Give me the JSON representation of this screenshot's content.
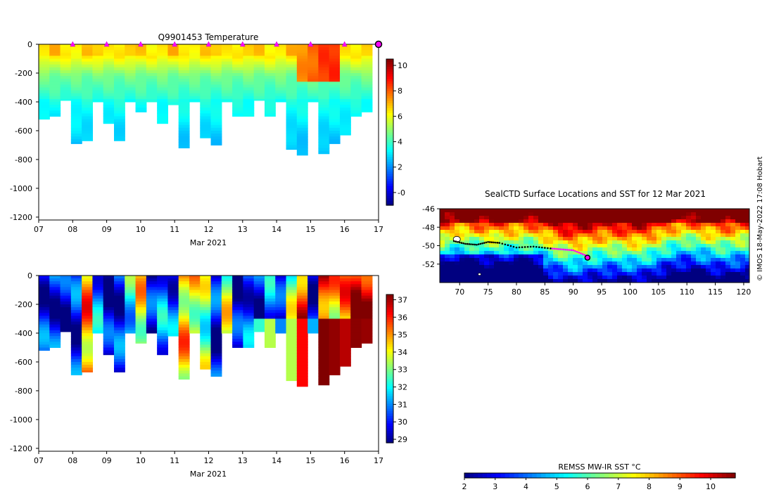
{
  "chart_data": [
    {
      "type": "heatmap",
      "title": "Q9901453  Temperature",
      "xlabel": "Mar 2021",
      "x_ticks": [
        "07",
        "08",
        "09",
        "10",
        "11",
        "12",
        "13",
        "14",
        "15",
        "16",
        "17"
      ],
      "y_ticks": [
        "0",
        "-200",
        "-400",
        "-600",
        "-800",
        "-1000",
        "-1200"
      ],
      "ylim": [
        -1220,
        0
      ],
      "colorbar": {
        "range": [
          -1,
          10.5
        ],
        "ticks": [
          "-0",
          "2",
          "4",
          "6",
          "8",
          "10"
        ]
      },
      "profile_markers_day": [
        8,
        9,
        10,
        11,
        12,
        13,
        14,
        15,
        16
      ],
      "last_profile_day": 17,
      "profile_max_depths_m": [
        -520,
        -500,
        -390,
        -690,
        -670,
        -400,
        -550,
        -670,
        -400,
        -470,
        -400,
        -550,
        -420,
        -720,
        -400,
        -650,
        -700,
        -400,
        -500,
        -500,
        -390,
        -500,
        -400,
        -730,
        -770,
        -400,
        -760,
        -690,
        -630,
        -500,
        -470
      ]
    },
    {
      "type": "heatmap",
      "title": "",
      "xlabel": "Mar 2021",
      "x_ticks": [
        "07",
        "08",
        "09",
        "10",
        "11",
        "12",
        "13",
        "14",
        "15",
        "16",
        "17"
      ],
      "y_ticks": [
        "0",
        "-200",
        "-400",
        "-600",
        "-800",
        "-1000",
        "-1200"
      ],
      "ylim": [
        -1220,
        0
      ],
      "colorbar": {
        "range": [
          28.8,
          37.3
        ],
        "ticks": [
          "29",
          "30",
          "31",
          "32",
          "33",
          "34",
          "35",
          "36",
          "37"
        ]
      }
    },
    {
      "type": "heatmap",
      "title": "SealCTD Surface Locations and SST for 12 Mar 2021",
      "x_ticks": [
        "70",
        "75",
        "80",
        "85",
        "90",
        "95",
        "100",
        "105",
        "110",
        "115",
        "120"
      ],
      "y_ticks": [
        "-46",
        "-48",
        "-50",
        "-52"
      ],
      "xlim": [
        66.5,
        121
      ],
      "ylim": [
        -54,
        -46
      ],
      "colorbar": {
        "label": "REMSS MW-IR SST °C",
        "range": [
          2,
          10.8
        ],
        "ticks": [
          "2",
          "3",
          "4",
          "5",
          "6",
          "7",
          "8",
          "9",
          "10"
        ]
      },
      "track": [
        [
          69,
          -49.5
        ],
        [
          71,
          -49.8
        ],
        [
          73,
          -49.9
        ],
        [
          75,
          -49.6
        ],
        [
          77,
          -49.7
        ],
        [
          80,
          -50.2
        ],
        [
          83,
          -50.1
        ],
        [
          86,
          -50.3
        ],
        [
          88,
          -50.4
        ],
        [
          90,
          -50.5
        ],
        [
          92,
          -51.0
        ],
        [
          92.5,
          -51.3
        ]
      ]
    }
  ],
  "credit": "© IMOS 18-May-2022 17:08 Hobart"
}
